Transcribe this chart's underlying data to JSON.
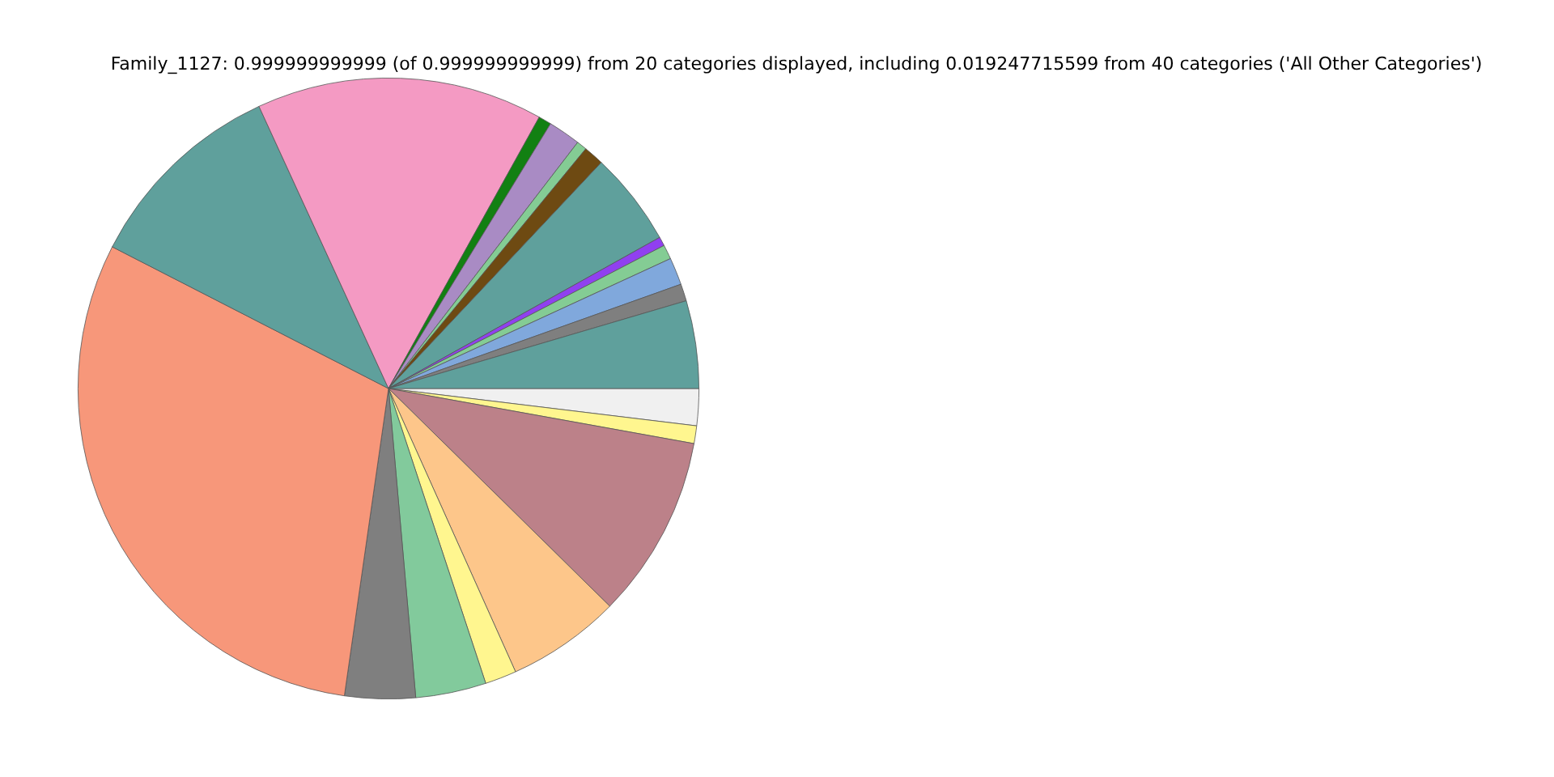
{
  "chart_data": {
    "type": "pie",
    "title": "Family_1127: 0.999999999999 (of 0.999999999999) from 20 categories displayed, including 0.019247715599 from 40 categories ('All Other Categories')",
    "categories": [
      null,
      null,
      null,
      null,
      null,
      null,
      null,
      null,
      null,
      null,
      null,
      null,
      null,
      null,
      null,
      null,
      null,
      null,
      null,
      null
    ],
    "values": [
      1.92,
      0.92,
      9.53,
      5.92,
      1.64,
      3.67,
      3.67,
      30.27,
      10.61,
      14.92,
      0.67,
      1.69,
      0.53,
      1.06,
      4.89,
      0.47,
      0.75,
      1.42,
      0.89,
      4.56
    ],
    "colors": [
      "#f0f0f0",
      "#fff68f",
      "#bc8189",
      "#fdc68a",
      "#fff68f",
      "#82ca9c",
      "#7f7f7f",
      "#f7977a",
      "#5fa09c",
      "#f49ac3",
      "#128012",
      "#a98bc4",
      "#84cc94",
      "#6e4a12",
      "#5fa09c",
      "#9040f0",
      "#84cc94",
      "#80a8dc",
      "#7f7f7f",
      "#5fa09c"
    ],
    "legend": false
  }
}
